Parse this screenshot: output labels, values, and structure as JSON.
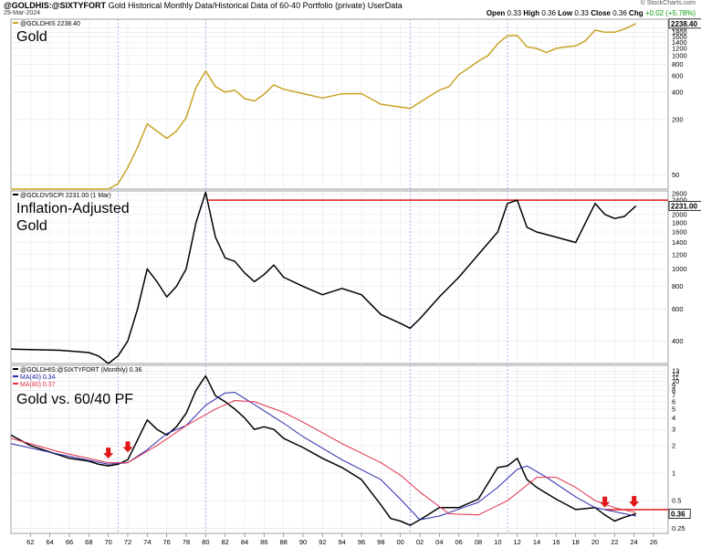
{
  "header": {
    "symbol": "@GOLDHIS:@SIXTYFORT",
    "description": "Gold Historical Monthly Data/Historical Data of 60-40 Portfolio (private)",
    "source": "UserData",
    "date": "29-Mar-2024",
    "brand": "© StockCharts.com",
    "open_label": "Open",
    "open": "0.33",
    "high_label": "High",
    "high": "0.36",
    "low_label": "Low",
    "low": "0.33",
    "close_label": "Close",
    "close": "0.36",
    "chg_label": "Chg",
    "chg": "+0.02 (+5.78%)"
  },
  "colors": {
    "gold_line": "#c9a227",
    "black_line": "#000000",
    "ma40": "#2b2bb0",
    "ma80": "#e0304a",
    "resistance": "#e01818",
    "arrow": "#e01818",
    "grid": "#e6e6e6",
    "vertical_marker": "#9aa0e0"
  },
  "chart_data": [
    {
      "type": "line",
      "panel_label": "Gold",
      "legend": "@GOLDHIS 2238.40",
      "last_value_tag": "2238.40",
      "scale": "log",
      "ylim": [
        35,
        2500
      ],
      "y_ticks": [
        50,
        200,
        400,
        600,
        800,
        1000,
        1200,
        1400,
        1600,
        1800,
        2000
      ],
      "series": [
        {
          "x": [
            1960,
            1966,
            1970,
            1971,
            1972,
            1973,
            1974,
            1975,
            1976,
            1977,
            1978,
            1979,
            1980,
            1981,
            1982,
            1983,
            1984,
            1985,
            1986,
            1987,
            1988,
            1990,
            1992,
            1994,
            1996,
            1998,
            1999,
            2000,
            2001,
            2002,
            2003,
            2004,
            2005,
            2006,
            2007,
            2008,
            2009,
            2010,
            2011,
            2012,
            2013,
            2014,
            2015,
            2016,
            2017,
            2018,
            2019,
            2020,
            2021,
            2022,
            2023,
            2024.2
          ],
          "values": [
            35,
            35,
            35,
            40,
            60,
            100,
            180,
            150,
            125,
            150,
            210,
            450,
            680,
            460,
            400,
            420,
            340,
            320,
            380,
            480,
            430,
            385,
            345,
            383,
            385,
            295,
            285,
            275,
            265,
            310,
            360,
            420,
            460,
            620,
            730,
            870,
            1000,
            1350,
            1650,
            1660,
            1250,
            1200,
            1080,
            1200,
            1250,
            1280,
            1450,
            1900,
            1800,
            1800,
            1950,
            2238
          ]
        }
      ]
    },
    {
      "type": "line",
      "panel_label": "Inflation-Adjusted Gold",
      "legend": "@GOLDVSCPI 2231.00 (1 Mar)",
      "last_value_tag": "2231.00",
      "scale": "log",
      "ylim": [
        300,
        2700
      ],
      "y_ticks": [
        400,
        600,
        800,
        1000,
        1200,
        1400,
        1600,
        1800,
        2000,
        2200,
        2400,
        2600
      ],
      "resistance_level": 2400,
      "series": [
        {
          "x": [
            1960,
            1965,
            1968,
            1969,
            1970,
            1971,
            1972,
            1973,
            1974,
            1975,
            1976,
            1977,
            1978,
            1979,
            1980,
            1981,
            1982,
            1983,
            1984,
            1985,
            1986,
            1987,
            1988,
            1990,
            1992,
            1994,
            1996,
            1998,
            2000,
            2001,
            2002,
            2004,
            2006,
            2008,
            2010,
            2011,
            2012,
            2013,
            2014,
            2016,
            2018,
            2020,
            2021,
            2022,
            2023,
            2024.2
          ],
          "values": [
            360,
            355,
            345,
            330,
            300,
            330,
            400,
            600,
            1000,
            850,
            700,
            800,
            1000,
            1800,
            2650,
            1500,
            1150,
            1100,
            950,
            850,
            930,
            1050,
            900,
            800,
            720,
            780,
            720,
            560,
            500,
            470,
            530,
            700,
            900,
            1200,
            1600,
            2300,
            2400,
            1700,
            1600,
            1500,
            1400,
            2300,
            2000,
            1900,
            1950,
            2231
          ]
        }
      ]
    },
    {
      "type": "line",
      "panel_label": "Gold vs. 60/40 PF",
      "legend": "@GOLDHIS:@SIXTYFORT (Monthly) 0.36",
      "legend_ma40": "MA(40) 0.34",
      "legend_ma80": "MA(80) 0.37",
      "last_value_tag": "0.36",
      "scale": "log",
      "ylim": [
        0.22,
        15
      ],
      "y_ticks": [
        0.25,
        0.5,
        1.0,
        2.0,
        3.0,
        4.0,
        5.0,
        6.0,
        7.0,
        8.0,
        9.0,
        10.0,
        11.0,
        12.0,
        13.0
      ],
      "resistance_level": 0.4,
      "arrow_years": [
        1970,
        1972,
        2021,
        2024
      ],
      "series": [
        {
          "name": "@GOLDHIS:@SIXTYFORT",
          "x": [
            1960,
            1962,
            1964,
            1966,
            1968,
            1969,
            1970,
            1971,
            1972,
            1973,
            1974,
            1975,
            1976,
            1977,
            1978,
            1979,
            1980,
            1981,
            1982,
            1983,
            1984,
            1985,
            1986,
            1987,
            1988,
            1990,
            1992,
            1994,
            1996,
            1998,
            1999,
            2000,
            2001,
            2002,
            2003,
            2004,
            2006,
            2008,
            2010,
            2011,
            2012,
            2013,
            2014,
            2016,
            2018,
            2020,
            2021,
            2022,
            2023,
            2024.2
          ],
          "values": [
            2.6,
            2.0,
            1.7,
            1.45,
            1.35,
            1.25,
            1.2,
            1.25,
            1.4,
            2.3,
            3.8,
            3.0,
            2.6,
            3.2,
            4.5,
            8.0,
            11.5,
            7.0,
            6.0,
            5.0,
            4.0,
            3.0,
            3.2,
            3.0,
            2.4,
            1.9,
            1.45,
            1.15,
            0.85,
            0.45,
            0.32,
            0.3,
            0.27,
            0.31,
            0.36,
            0.42,
            0.42,
            0.52,
            1.15,
            1.2,
            1.45,
            0.85,
            0.7,
            0.52,
            0.4,
            0.42,
            0.35,
            0.3,
            0.33,
            0.36
          ]
        },
        {
          "name": "MA(40)",
          "x": [
            1960,
            1965,
            1970,
            1972,
            1974,
            1976,
            1978,
            1980,
            1982,
            1983,
            1985,
            1988,
            1990,
            1994,
            1998,
            2000,
            2002,
            2004,
            2008,
            2010,
            2012,
            2013,
            2015,
            2018,
            2020,
            2022,
            2024.2
          ],
          "values": [
            2.1,
            1.6,
            1.25,
            1.3,
            1.8,
            2.7,
            3.3,
            5.5,
            7.5,
            7.6,
            5.6,
            3.5,
            2.5,
            1.4,
            0.85,
            0.52,
            0.31,
            0.34,
            0.48,
            0.7,
            1.1,
            1.2,
            0.9,
            0.55,
            0.42,
            0.38,
            0.34
          ]
        },
        {
          "name": "MA(80)",
          "x": [
            1960,
            1965,
            1970,
            1972,
            1975,
            1978,
            1981,
            1983,
            1985,
            1988,
            1990,
            1994,
            1998,
            2000,
            2002,
            2005,
            2008,
            2011,
            2014,
            2016,
            2018,
            2020,
            2022,
            2024.2
          ],
          "values": [
            2.4,
            1.7,
            1.3,
            1.3,
            2.0,
            3.3,
            5.0,
            6.2,
            6.0,
            4.6,
            3.6,
            2.1,
            1.3,
            0.95,
            0.62,
            0.36,
            0.35,
            0.5,
            0.9,
            0.9,
            0.7,
            0.5,
            0.42,
            0.37
          ]
        }
      ]
    }
  ],
  "x_axis": {
    "labels": [
      "62",
      "64",
      "66",
      "68",
      "70",
      "72",
      "74",
      "76",
      "78",
      "80",
      "82",
      "84",
      "86",
      "88",
      "90",
      "92",
      "94",
      "96",
      "98",
      "00",
      "02",
      "04",
      "06",
      "08",
      "10",
      "12",
      "14",
      "16",
      "18",
      "20",
      "22",
      "24",
      "26"
    ],
    "years": [
      1962,
      1964,
      1966,
      1968,
      1970,
      1972,
      1974,
      1976,
      1978,
      1980,
      1982,
      1984,
      1986,
      1988,
      1990,
      1992,
      1994,
      1996,
      1998,
      2000,
      2002,
      2004,
      2006,
      2008,
      2010,
      2012,
      2014,
      2016,
      2018,
      2020,
      2022,
      2024,
      2026
    ],
    "xlim": [
      1960,
      2027.5
    ],
    "marker_years": [
      1971,
      1980,
      2001,
      2011
    ]
  }
}
